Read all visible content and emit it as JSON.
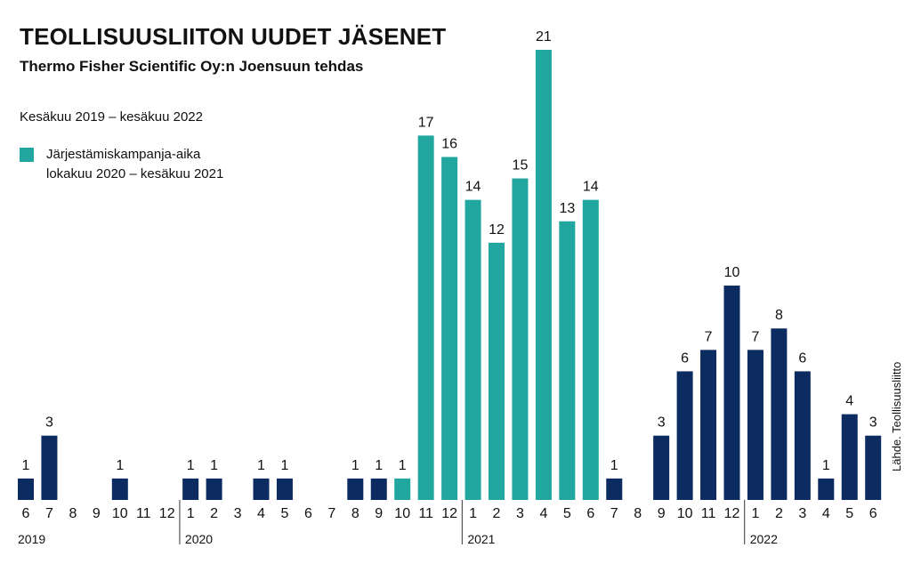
{
  "title": "TEOLLISUUSLIITON UUDET JÄSENET",
  "subtitle": "Thermo Fisher Scientific Oy:n Joensuun tehdas",
  "period": "Kesäkuu 2019 – kesäkuu 2022",
  "legend": {
    "line1": "Järjestämiskampanja-aika",
    "line2": "lokakuu 2020 – kesäkuu 2021"
  },
  "source": "Lähde. Teollisuusliitto",
  "colors": {
    "normal": "#0c2c61",
    "campaign": "#21a79f"
  },
  "chart_data": {
    "type": "bar",
    "title": "TEOLLISUUSLIITON UUDET JÄSENET",
    "subtitle": "Thermo Fisher Scientific Oy:n Joensuun tehdas",
    "categories": [
      "6",
      "7",
      "8",
      "9",
      "10",
      "11",
      "12",
      "1",
      "2",
      "3",
      "4",
      "5",
      "6",
      "7",
      "8",
      "9",
      "10",
      "11",
      "12",
      "1",
      "2",
      "3",
      "4",
      "5",
      "6",
      "7",
      "8",
      "9",
      "10",
      "11",
      "12",
      "1",
      "2",
      "3",
      "4",
      "5",
      "6"
    ],
    "values": [
      1,
      3,
      0,
      0,
      1,
      0,
      0,
      1,
      1,
      0,
      1,
      1,
      0,
      0,
      1,
      1,
      1,
      17,
      16,
      14,
      12,
      15,
      21,
      13,
      14,
      1,
      0,
      3,
      6,
      7,
      10,
      7,
      8,
      6,
      1,
      4,
      3
    ],
    "campaign": [
      false,
      false,
      false,
      false,
      false,
      false,
      false,
      false,
      false,
      false,
      false,
      false,
      false,
      false,
      false,
      false,
      true,
      true,
      true,
      true,
      true,
      true,
      true,
      true,
      true,
      false,
      false,
      false,
      false,
      false,
      false,
      false,
      false,
      false,
      false,
      false,
      false
    ],
    "years": [
      {
        "label": "2019",
        "start": 0
      },
      {
        "label": "2020",
        "start": 7
      },
      {
        "label": "2021",
        "start": 19
      },
      {
        "label": "2022",
        "start": 31
      }
    ],
    "legend": [
      {
        "name": "Järjestämiskampanja-aika lokakuu 2020 – kesäkuu 2021",
        "color": "#21a79f"
      }
    ],
    "xlabel": "",
    "ylabel": "",
    "ylim": [
      0,
      21
    ],
    "grid": false
  }
}
